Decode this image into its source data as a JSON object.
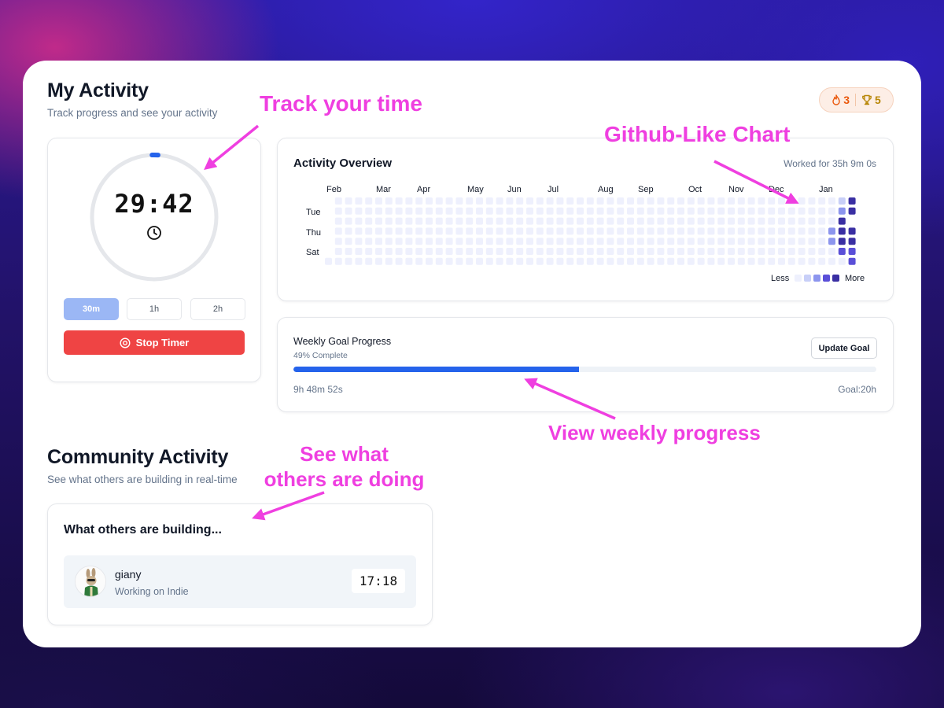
{
  "my_activity": {
    "title": "My Activity",
    "subtitle": "Track progress and see your activity"
  },
  "badges": {
    "streak_icon": "fire-icon",
    "streak": "3",
    "trophy_icon": "trophy-icon",
    "trophies": "5"
  },
  "timer": {
    "display": "29:42",
    "icon": "clock-icon",
    "progress_fraction": 0.01,
    "durations": [
      {
        "label": "30m",
        "active": true
      },
      {
        "label": "1h",
        "active": false
      },
      {
        "label": "2h",
        "active": false
      }
    ],
    "stop_icon": "stop-circle-icon",
    "stop_label": "Stop Timer"
  },
  "activity_overview": {
    "title": "Activity Overview",
    "worked_text": "Worked for 35h 9m 0s",
    "months": [
      "Feb",
      "Mar",
      "Apr",
      "May",
      "Jun",
      "Jul",
      "Aug",
      "Sep",
      "Oct",
      "Nov",
      "Dec",
      "Jan"
    ],
    "day_labels": [
      "Tue",
      "Thu",
      "Sat"
    ],
    "legend_less": "Less",
    "legend_more": "More",
    "colors": [
      "#eef0fd",
      "#c8cff8",
      "#8c95ee",
      "#5a4fd8",
      "#3a2fa3"
    ]
  },
  "weekly_goal": {
    "title": "Weekly Goal Progress",
    "complete_text": "49% Complete",
    "progress_fraction": 0.49,
    "update_label": "Update Goal",
    "elapsed": "9h 48m 52s",
    "goal_text": "Goal:20h"
  },
  "community": {
    "title": "Community Activity",
    "subtitle": "See what others are building in real-time",
    "panel_title": "What others are building...",
    "users": [
      {
        "name": "giany",
        "status": "Working on Indie",
        "timer": "17:18"
      }
    ]
  },
  "annotations": {
    "track": "Track your time",
    "github": "Github-Like Chart",
    "weekly": "View weekly progress",
    "others_1": "See what",
    "others_2": "others are doing",
    "color": "#ef3fe0"
  }
}
